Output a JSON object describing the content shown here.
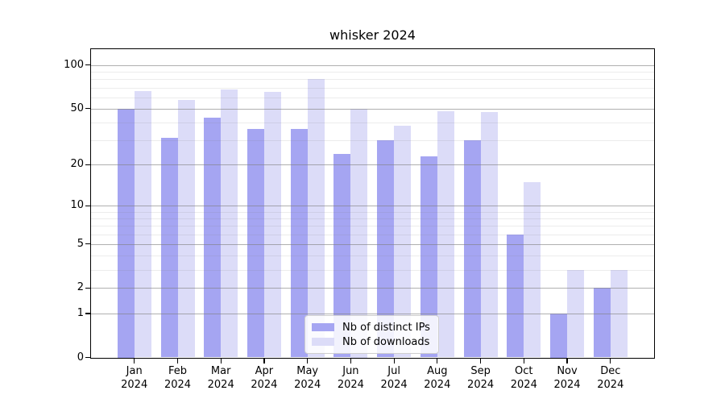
{
  "title": "whisker 2024",
  "chart_data": {
    "type": "bar",
    "title": "whisker 2024",
    "scale": "symlog (position proportional to log10(1+value))",
    "categories": [
      "Jan",
      "Feb",
      "Mar",
      "Apr",
      "May",
      "Jun",
      "Jul",
      "Aug",
      "Sep",
      "Oct",
      "Nov",
      "Dec"
    ],
    "year": "2024",
    "series": [
      {
        "name": "Nb of distinct IPs",
        "color": "#a5a5f2",
        "values": [
          50,
          31,
          43,
          36,
          36,
          24,
          30,
          23,
          30,
          6,
          1,
          2
        ]
      },
      {
        "name": "Nb of downloads",
        "color": "#dcdcf8",
        "values": [
          66,
          57,
          68,
          65,
          80,
          50,
          38,
          48,
          47,
          15,
          3,
          3
        ]
      }
    ],
    "y_ticks": [
      100,
      50,
      20,
      10,
      5,
      2,
      1,
      0
    ],
    "y_minor_ticks": [
      3,
      4,
      6,
      7,
      8,
      9,
      30,
      40,
      60,
      70,
      80,
      90
    ],
    "ylim": [
      0,
      129
    ],
    "xlabel": "",
    "ylabel": "",
    "grid": true,
    "legend_position": "lower center"
  },
  "colors": {
    "distinct_ips_bar": "#a5a5f2",
    "downloads_bar": "#dcdcf8",
    "grid_major": "#b0b0b0",
    "grid_minor": "#ececec",
    "axis": "#000000",
    "background": "#ffffff"
  }
}
